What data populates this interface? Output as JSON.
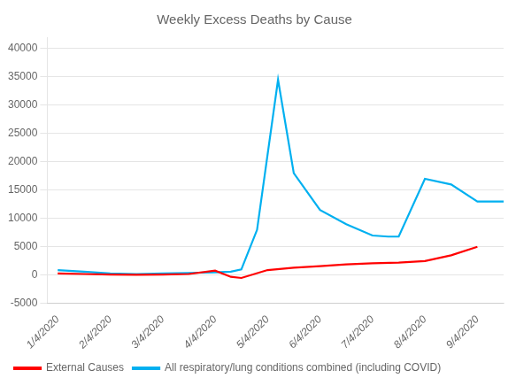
{
  "chart_data": {
    "type": "line",
    "title": "Weekly Excess Deaths by Cause",
    "series": [
      {
        "name": "External Causes",
        "color": "#FF0000",
        "x": [
          0,
          0.5,
          1,
          1.5,
          2,
          2.5,
          3,
          3.3,
          3.5,
          4,
          4.5,
          5,
          5.5,
          6,
          6.5,
          7,
          7.5,
          8
        ],
        "values": [
          300,
          200,
          100,
          50,
          100,
          200,
          800,
          -300,
          -500,
          900,
          1300,
          1600,
          1900,
          2100,
          2200,
          2500,
          3500,
          5000
        ]
      },
      {
        "name": "All respiratory/lung conditions combined (including COVID)",
        "color": "#00B0F0",
        "x": [
          0,
          0.5,
          1,
          1.5,
          2,
          2.5,
          3,
          3.3,
          3.5,
          3.8,
          4.2,
          4.5,
          5,
          5.5,
          6,
          6.3,
          6.5,
          7,
          7.5,
          8,
          8.5
        ],
        "values": [
          900,
          600,
          300,
          200,
          300,
          400,
          500,
          600,
          1000,
          8000,
          34500,
          18000,
          11500,
          9000,
          7000,
          6800,
          6800,
          17000,
          16000,
          13000,
          13000
        ]
      }
    ],
    "xlim": [
      -0.2,
      8.5
    ],
    "xticks": [
      {
        "value": 0,
        "label": "1/4/2020"
      },
      {
        "value": 1,
        "label": "2/4/2020"
      },
      {
        "value": 2,
        "label": "3/4/2020"
      },
      {
        "value": 3,
        "label": "4/4/2020"
      },
      {
        "value": 4,
        "label": "5/4/2020"
      },
      {
        "value": 5,
        "label": "6/4/2020"
      },
      {
        "value": 6,
        "label": "7/4/2020"
      },
      {
        "value": 7,
        "label": "8/4/2020"
      },
      {
        "value": 8,
        "label": "9/4/2020"
      }
    ],
    "ylim": [
      -5000,
      42000
    ],
    "yticks": [
      -5000,
      0,
      5000,
      10000,
      15000,
      20000,
      25000,
      30000,
      35000,
      40000
    ],
    "grid": "y",
    "legend": "bottom left"
  }
}
